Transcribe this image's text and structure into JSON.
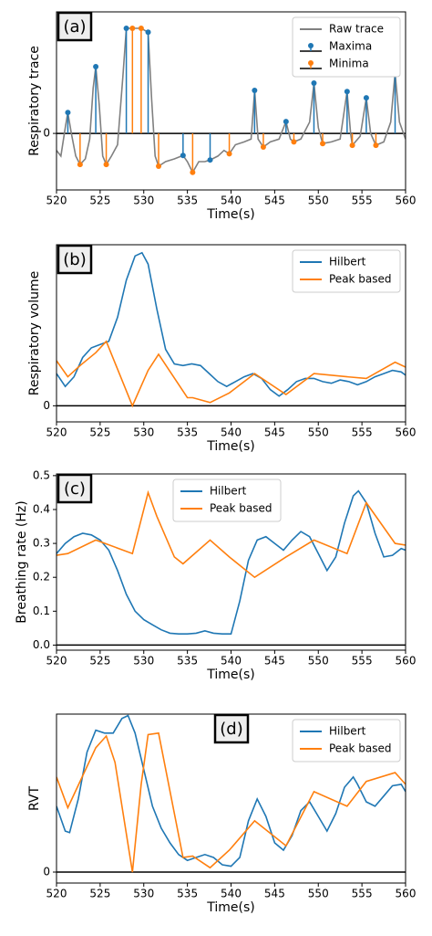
{
  "chart_data": [
    {
      "type": "line",
      "panel_label": "(a)",
      "ylabel": "Respiratory trace",
      "xlabel": "Time(s)",
      "xlim": [
        520,
        560
      ],
      "xticks": [
        520,
        525,
        530,
        535,
        540,
        545,
        550,
        555,
        560
      ],
      "ylim": [
        -1,
        2.15
      ],
      "yticks": [
        0
      ],
      "legend": "upper right",
      "series": [
        {
          "name": "Raw trace",
          "color": "#808080",
          "style": "line",
          "x": [
            520,
            520.5,
            521,
            521.3,
            521.7,
            522.2,
            522.7,
            523.3,
            523.8,
            524.2,
            524.5,
            524.9,
            525.3,
            525.7,
            526.3,
            527,
            527.6,
            528,
            528.7,
            529.7,
            530.5,
            530.9,
            531.3,
            531.7,
            532.5,
            533.5,
            534.5,
            535,
            535.6,
            536.3,
            537,
            537.6,
            538.5,
            539.2,
            539.8,
            540.5,
            541.5,
            542.3,
            542.7,
            543.1,
            543.7,
            544.5,
            545.5,
            546.3,
            546.8,
            547.2,
            548,
            549,
            549.5,
            550,
            550.5,
            551.5,
            552.5,
            553.3,
            553.7,
            553.9,
            554.8,
            555.5,
            556,
            556.6,
            557.5,
            558.3,
            558.8,
            559.3,
            560
          ],
          "values": [
            -0.3,
            -0.4,
            0.1,
            0.37,
            0,
            -0.4,
            -0.55,
            -0.45,
            -0.1,
            0.8,
            1.18,
            0.5,
            -0.4,
            -0.55,
            -0.4,
            -0.2,
            1.0,
            1.86,
            1.86,
            1.86,
            1.79,
            0.6,
            -0.4,
            -0.58,
            -0.5,
            -0.45,
            -0.39,
            -0.5,
            -0.69,
            -0.5,
            -0.5,
            -0.47,
            -0.4,
            -0.3,
            -0.36,
            -0.2,
            -0.15,
            -0.1,
            0.76,
            -0.1,
            -0.24,
            -0.15,
            -0.1,
            0.21,
            -0.1,
            -0.15,
            -0.1,
            0.2,
            0.89,
            0.1,
            -0.18,
            -0.15,
            -0.1,
            0.74,
            0,
            -0.21,
            -0.05,
            0.63,
            0,
            -0.21,
            -0.15,
            0.2,
            1.07,
            0.2,
            -0.1
          ]
        },
        {
          "name": "Maxima",
          "color": "#1f77b4",
          "style": "stem",
          "x": [
            521.3,
            524.5,
            528,
            530.5,
            534.5,
            537.6,
            542.7,
            546.3,
            549.5,
            553.3,
            555.5,
            558.8
          ],
          "values": [
            0.37,
            1.18,
            1.86,
            1.79,
            -0.39,
            -0.47,
            0.76,
            0.21,
            0.89,
            0.74,
            0.63,
            1.07
          ]
        },
        {
          "name": "Minima",
          "color": "#ff7f0e",
          "style": "stem",
          "x": [
            522.7,
            525.7,
            528.7,
            529.7,
            531.7,
            535.6,
            539.8,
            543.7,
            547.2,
            550.5,
            553.9,
            556.6
          ],
          "values": [
            -0.55,
            -0.55,
            1.86,
            1.86,
            -0.58,
            -0.69,
            -0.36,
            -0.24,
            -0.15,
            -0.18,
            -0.21,
            -0.21
          ]
        }
      ]
    },
    {
      "type": "line",
      "panel_label": "(b)",
      "ylabel": "Respiratory volume",
      "xlabel": "Time(s)",
      "xlim": [
        520,
        560
      ],
      "xticks": [
        520,
        525,
        530,
        535,
        540,
        545,
        550,
        555,
        560
      ],
      "ylim": [
        -0.1,
        1.0
      ],
      "yticks": [
        0
      ],
      "legend": "upper right",
      "series": [
        {
          "name": "Hilbert",
          "color": "#1f77b4",
          "style": "line",
          "x": [
            520,
            521,
            522,
            523,
            524,
            525,
            526,
            527,
            528,
            529,
            529.8,
            530.5,
            531.5,
            532.5,
            533.5,
            534.5,
            535.5,
            536.5,
            537.5,
            538.5,
            539.5,
            540.5,
            541.5,
            542.5,
            543.5,
            544.5,
            545.5,
            546.5,
            547.5,
            548.5,
            549.5,
            550.5,
            551.5,
            552.5,
            553.5,
            554.5,
            555.5,
            556.5,
            557.5,
            558.5,
            559.5,
            560
          ],
          "values": [
            0.2,
            0.12,
            0.18,
            0.3,
            0.36,
            0.38,
            0.4,
            0.55,
            0.78,
            0.93,
            0.95,
            0.88,
            0.6,
            0.35,
            0.26,
            0.25,
            0.26,
            0.25,
            0.2,
            0.15,
            0.12,
            0.15,
            0.18,
            0.2,
            0.17,
            0.1,
            0.06,
            0.1,
            0.15,
            0.17,
            0.17,
            0.15,
            0.14,
            0.16,
            0.15,
            0.13,
            0.15,
            0.18,
            0.2,
            0.22,
            0.21,
            0.19
          ]
        },
        {
          "name": "Peak based",
          "color": "#ff7f0e",
          "style": "line",
          "x": [
            520,
            521.3,
            522.7,
            524.5,
            525.7,
            528.7,
            530.5,
            531.7,
            535,
            535.6,
            537.6,
            539.8,
            542.7,
            546.3,
            549.5,
            553.3,
            555.5,
            558.8,
            560
          ],
          "values": [
            0.28,
            0.18,
            0.25,
            0.33,
            0.4,
            0.0,
            0.22,
            0.32,
            0.05,
            0.05,
            0.02,
            0.08,
            0.2,
            0.07,
            0.2,
            0.18,
            0.17,
            0.27,
            0.24
          ]
        }
      ]
    },
    {
      "type": "line",
      "panel_label": "(c)",
      "ylabel": "Breathing rate (Hz)",
      "xlabel": "Time(s)",
      "xlim": [
        520,
        560
      ],
      "xticks": [
        520,
        525,
        530,
        535,
        540,
        545,
        550,
        555,
        560
      ],
      "ylim": [
        -0.015,
        0.505
      ],
      "yticks": [
        {
          "value": 0,
          "label": "0.0"
        },
        0.1,
        0.2,
        0.3,
        0.4,
        0.5
      ],
      "legend": "upper center",
      "series": [
        {
          "name": "Hilbert",
          "color": "#1f77b4",
          "style": "line",
          "x": [
            520,
            521,
            522,
            523,
            524,
            525,
            526,
            527,
            528,
            529,
            530,
            531,
            532,
            533,
            534,
            535,
            536,
            537,
            538,
            539,
            540,
            541,
            542,
            543,
            544,
            545,
            546,
            547,
            548,
            549,
            550,
            551,
            552,
            553,
            554,
            554.6,
            555.5,
            556.5,
            557.5,
            558.5,
            559.5,
            560
          ],
          "values": [
            0.27,
            0.3,
            0.32,
            0.33,
            0.325,
            0.31,
            0.28,
            0.22,
            0.15,
            0.1,
            0.075,
            0.06,
            0.045,
            0.035,
            0.033,
            0.033,
            0.035,
            0.042,
            0.035,
            0.033,
            0.033,
            0.13,
            0.25,
            0.31,
            0.32,
            0.3,
            0.28,
            0.31,
            0.335,
            0.32,
            0.27,
            0.22,
            0.26,
            0.36,
            0.44,
            0.455,
            0.42,
            0.33,
            0.26,
            0.265,
            0.285,
            0.28
          ]
        },
        {
          "name": "Peak based",
          "color": "#ff7f0e",
          "style": "line",
          "x": [
            520,
            521.3,
            524.5,
            528.7,
            530.5,
            531.5,
            533.5,
            534.5,
            537.6,
            539.8,
            542.7,
            546.3,
            549.5,
            553.3,
            555.5,
            558.8,
            560
          ],
          "values": [
            0.265,
            0.27,
            0.31,
            0.27,
            0.45,
            0.38,
            0.26,
            0.24,
            0.31,
            0.26,
            0.2,
            0.26,
            0.31,
            0.27,
            0.42,
            0.3,
            0.295
          ]
        }
      ]
    },
    {
      "type": "line",
      "panel_label": "(d)",
      "ylabel": "RVT",
      "xlabel": "Time(s)",
      "xlim": [
        520,
        560
      ],
      "xticks": [
        520,
        525,
        530,
        535,
        540,
        545,
        550,
        555,
        560
      ],
      "ylim": [
        -0.075,
        1.08
      ],
      "yticks": [
        0
      ],
      "legend": "upper right",
      "series": [
        {
          "name": "Hilbert",
          "color": "#1f77b4",
          "style": "line",
          "x": [
            520,
            521,
            521.5,
            522.5,
            523.5,
            524.5,
            525.5,
            526.5,
            527.5,
            528.2,
            529,
            530,
            531,
            532,
            533,
            534,
            535,
            536,
            537,
            538,
            539,
            540,
            541,
            542,
            543,
            544,
            545,
            546,
            547,
            548,
            549,
            550,
            551,
            552,
            553,
            554,
            554.5,
            555.5,
            556.5,
            557.5,
            558.5,
            559.5,
            560
          ],
          "values": [
            0.45,
            0.28,
            0.27,
            0.5,
            0.82,
            0.97,
            0.95,
            0.95,
            1.05,
            1.07,
            0.95,
            0.7,
            0.45,
            0.3,
            0.2,
            0.12,
            0.08,
            0.1,
            0.12,
            0.1,
            0.05,
            0.04,
            0.1,
            0.35,
            0.5,
            0.38,
            0.2,
            0.15,
            0.25,
            0.42,
            0.48,
            0.38,
            0.28,
            0.4,
            0.58,
            0.65,
            0.6,
            0.48,
            0.45,
            0.52,
            0.59,
            0.6,
            0.55
          ]
        },
        {
          "name": "Peak based",
          "color": "#ff7f0e",
          "style": "line",
          "x": [
            520,
            521.3,
            524.5,
            525.7,
            526.7,
            528.7,
            529.7,
            530.5,
            531.7,
            534.5,
            535.6,
            537.6,
            539.8,
            542.7,
            546.3,
            549.5,
            553.3,
            555.5,
            558.8,
            560
          ],
          "values": [
            0.65,
            0.44,
            0.85,
            0.93,
            0.75,
            0.0,
            0.6,
            0.94,
            0.95,
            0.1,
            0.11,
            0.03,
            0.15,
            0.35,
            0.18,
            0.55,
            0.45,
            0.62,
            0.68,
            0.6
          ]
        }
      ]
    }
  ]
}
